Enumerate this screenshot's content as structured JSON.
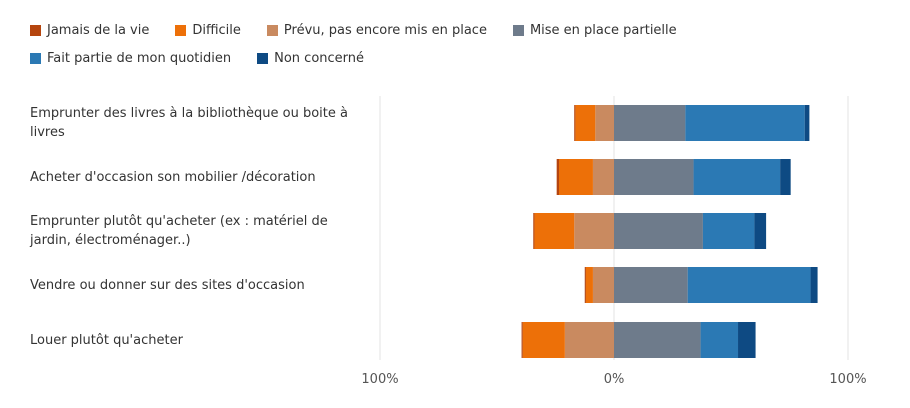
{
  "chart_data": {
    "type": "bar",
    "orientation": "horizontal-diverging",
    "series": [
      {
        "name": "Jamais de la vie",
        "color": "#B5450E",
        "side": "negative"
      },
      {
        "name": "Difficile",
        "color": "#ED7008",
        "side": "negative"
      },
      {
        "name": "Prévu, pas encore mis en place",
        "color": "#C98A60",
        "side": "negative"
      },
      {
        "name": "Mise en place partielle",
        "color": "#6E7B8B",
        "side": "positive"
      },
      {
        "name": "Fait partie de mon quotidien",
        "color": "#2B79B4",
        "side": "positive"
      },
      {
        "name": "Non concerné",
        "color": "#0E4A83",
        "side": "positive"
      }
    ],
    "categories": [
      {
        "label": "Emprunter des livres à la bibliothèque ou boite à livres",
        "values": [
          0.5,
          8.5,
          8.0,
          30.5,
          51.0,
          2.0
        ]
      },
      {
        "label": "Acheter d'occasion son mobilier /décoration",
        "values": [
          1.0,
          14.5,
          9.0,
          34.0,
          37.0,
          4.5
        ]
      },
      {
        "label": "Emprunter plutôt qu'acheter (ex : matériel de jardin, électroménager..)",
        "values": [
          0.5,
          17.0,
          17.0,
          38.0,
          22.0,
          5.0
        ]
      },
      {
        "label": "Vendre ou donner sur des sites d'occasion",
        "values": [
          0.5,
          3.0,
          9.0,
          31.5,
          52.5,
          3.0
        ]
      },
      {
        "label": "Louer plutôt qu'acheter",
        "values": [
          0.5,
          18.0,
          21.0,
          37.0,
          16.0,
          7.5
        ]
      }
    ],
    "x_ticks": [
      "100%",
      "0%",
      "100%"
    ],
    "xlim": [
      -100,
      100
    ],
    "grid": true,
    "legend_position": "top"
  }
}
